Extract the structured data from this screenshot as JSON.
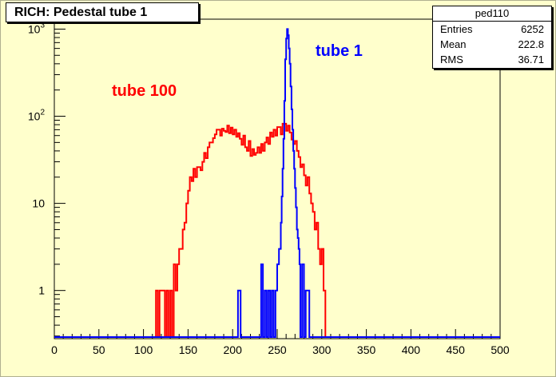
{
  "chart_data": {
    "type": "histogram",
    "title": "RICH: Pedestal tube 1",
    "x_axis": {
      "range": [
        0,
        500
      ],
      "ticks": [
        0,
        50,
        100,
        150,
        200,
        250,
        300,
        350,
        400,
        450,
        500
      ]
    },
    "y_axis": {
      "scale": "log",
      "range": [
        0.28,
        1300
      ],
      "ticks": [
        {
          "value": 1,
          "base": "1",
          "exp": ""
        },
        {
          "value": 10,
          "base": "10",
          "exp": ""
        },
        {
          "value": 100,
          "base": "10",
          "exp": "2"
        },
        {
          "value": 1000,
          "base": "10",
          "exp": "3"
        }
      ]
    },
    "series": [
      {
        "name": "tube 100",
        "color": "#ff0000",
        "bin_width": 2,
        "points": [
          [
            0,
            0
          ],
          [
            114,
            0
          ],
          [
            114,
            1
          ],
          [
            116,
            1
          ],
          [
            116,
            0
          ],
          [
            118,
            0
          ],
          [
            118,
            1
          ],
          [
            124,
            1
          ],
          [
            124,
            0
          ],
          [
            126,
            0
          ],
          [
            126,
            1
          ],
          [
            128,
            1
          ],
          [
            128,
            0
          ],
          [
            130,
            0
          ],
          [
            130,
            1
          ],
          [
            132,
            1
          ],
          [
            132,
            0
          ],
          [
            134,
            0
          ],
          [
            134,
            2
          ],
          [
            136,
            2
          ],
          [
            136,
            1
          ],
          [
            138,
            1
          ],
          [
            138,
            2
          ],
          [
            140,
            2
          ],
          [
            140,
            3
          ],
          [
            144,
            3
          ],
          [
            144,
            5
          ],
          [
            146,
            5
          ],
          [
            146,
            6
          ],
          [
            148,
            6
          ],
          [
            148,
            10
          ],
          [
            150,
            10
          ],
          [
            150,
            14
          ],
          [
            152,
            14
          ],
          [
            152,
            20
          ],
          [
            154,
            20
          ],
          [
            154,
            18
          ],
          [
            156,
            18
          ],
          [
            156,
            25
          ],
          [
            158,
            25
          ],
          [
            158,
            20
          ],
          [
            160,
            20
          ],
          [
            160,
            26
          ],
          [
            164,
            26
          ],
          [
            164,
            24
          ],
          [
            166,
            24
          ],
          [
            166,
            30
          ],
          [
            168,
            30
          ],
          [
            168,
            38
          ],
          [
            170,
            38
          ],
          [
            170,
            33
          ],
          [
            172,
            33
          ],
          [
            172,
            44
          ],
          [
            174,
            44
          ],
          [
            174,
            50
          ],
          [
            178,
            50
          ],
          [
            178,
            56
          ],
          [
            180,
            56
          ],
          [
            180,
            62
          ],
          [
            182,
            62
          ],
          [
            182,
            70
          ],
          [
            186,
            70
          ],
          [
            186,
            60
          ],
          [
            188,
            60
          ],
          [
            188,
            72
          ],
          [
            190,
            72
          ],
          [
            190,
            68
          ],
          [
            192,
            68
          ],
          [
            192,
            66
          ],
          [
            194,
            66
          ],
          [
            194,
            78
          ],
          [
            196,
            78
          ],
          [
            196,
            64
          ],
          [
            198,
            64
          ],
          [
            198,
            74
          ],
          [
            200,
            74
          ],
          [
            200,
            62
          ],
          [
            202,
            62
          ],
          [
            202,
            70
          ],
          [
            204,
            70
          ],
          [
            204,
            58
          ],
          [
            206,
            58
          ],
          [
            206,
            64
          ],
          [
            208,
            64
          ],
          [
            208,
            55
          ],
          [
            210,
            55
          ],
          [
            210,
            47
          ],
          [
            212,
            47
          ],
          [
            212,
            60
          ],
          [
            214,
            60
          ],
          [
            214,
            44
          ],
          [
            216,
            44
          ],
          [
            216,
            40
          ],
          [
            218,
            40
          ],
          [
            218,
            52
          ],
          [
            220,
            52
          ],
          [
            220,
            35
          ],
          [
            222,
            35
          ],
          [
            222,
            42
          ],
          [
            224,
            42
          ],
          [
            224,
            36
          ],
          [
            226,
            36
          ],
          [
            226,
            38
          ],
          [
            228,
            38
          ],
          [
            228,
            44
          ],
          [
            230,
            44
          ],
          [
            230,
            38
          ],
          [
            232,
            38
          ],
          [
            232,
            48
          ],
          [
            234,
            48
          ],
          [
            234,
            40
          ],
          [
            236,
            40
          ],
          [
            236,
            50
          ],
          [
            238,
            50
          ],
          [
            238,
            57
          ],
          [
            240,
            57
          ],
          [
            240,
            48
          ],
          [
            242,
            48
          ],
          [
            242,
            65
          ],
          [
            244,
            65
          ],
          [
            244,
            58
          ],
          [
            246,
            58
          ],
          [
            246,
            70
          ],
          [
            248,
            70
          ],
          [
            248,
            60
          ],
          [
            250,
            60
          ],
          [
            250,
            75
          ],
          [
            254,
            75
          ],
          [
            254,
            62
          ],
          [
            256,
            62
          ],
          [
            256,
            82
          ],
          [
            260,
            82
          ],
          [
            260,
            68
          ],
          [
            262,
            68
          ],
          [
            262,
            78
          ],
          [
            264,
            78
          ],
          [
            264,
            65
          ],
          [
            266,
            65
          ],
          [
            266,
            54
          ],
          [
            268,
            54
          ],
          [
            268,
            48
          ],
          [
            270,
            48
          ],
          [
            270,
            52
          ],
          [
            272,
            52
          ],
          [
            272,
            40
          ],
          [
            274,
            40
          ],
          [
            274,
            34
          ],
          [
            276,
            34
          ],
          [
            276,
            26
          ],
          [
            278,
            26
          ],
          [
            278,
            28
          ],
          [
            280,
            28
          ],
          [
            280,
            21
          ],
          [
            282,
            21
          ],
          [
            282,
            16
          ],
          [
            284,
            16
          ],
          [
            284,
            20
          ],
          [
            286,
            20
          ],
          [
            286,
            13
          ],
          [
            288,
            13
          ],
          [
            288,
            10
          ],
          [
            290,
            10
          ],
          [
            290,
            8
          ],
          [
            292,
            8
          ],
          [
            292,
            5
          ],
          [
            294,
            5
          ],
          [
            294,
            6
          ],
          [
            296,
            6
          ],
          [
            296,
            3
          ],
          [
            298,
            3
          ],
          [
            298,
            2
          ],
          [
            300,
            2
          ],
          [
            300,
            3
          ],
          [
            302,
            3
          ],
          [
            302,
            1
          ],
          [
            304,
            1
          ],
          [
            304,
            0
          ],
          [
            500,
            0
          ]
        ]
      },
      {
        "name": "tube 1",
        "color": "#0000ff",
        "bin_width": 1,
        "points": [
          [
            0,
            0
          ],
          [
            206,
            0
          ],
          [
            206,
            1
          ],
          [
            209,
            1
          ],
          [
            209,
            0
          ],
          [
            232,
            0
          ],
          [
            232,
            2
          ],
          [
            234,
            2
          ],
          [
            234,
            0
          ],
          [
            236,
            0
          ],
          [
            236,
            1
          ],
          [
            238,
            1
          ],
          [
            238,
            0
          ],
          [
            240,
            0
          ],
          [
            240,
            1
          ],
          [
            242,
            1
          ],
          [
            242,
            0
          ],
          [
            244,
            0
          ],
          [
            244,
            1
          ],
          [
            246,
            1
          ],
          [
            246,
            0
          ],
          [
            248,
            0
          ],
          [
            248,
            1
          ],
          [
            250,
            1
          ],
          [
            250,
            2
          ],
          [
            252,
            2
          ],
          [
            252,
            3
          ],
          [
            254,
            3
          ],
          [
            254,
            6
          ],
          [
            255,
            6
          ],
          [
            255,
            12
          ],
          [
            256,
            12
          ],
          [
            256,
            25
          ],
          [
            257,
            25
          ],
          [
            257,
            55
          ],
          [
            258,
            55
          ],
          [
            258,
            150
          ],
          [
            259,
            150
          ],
          [
            259,
            450
          ],
          [
            260,
            450
          ],
          [
            260,
            780
          ],
          [
            261,
            780
          ],
          [
            261,
            1000
          ],
          [
            262,
            1000
          ],
          [
            262,
            850
          ],
          [
            263,
            850
          ],
          [
            263,
            600
          ],
          [
            264,
            600
          ],
          [
            264,
            400
          ],
          [
            265,
            400
          ],
          [
            265,
            220
          ],
          [
            266,
            220
          ],
          [
            266,
            120
          ],
          [
            267,
            120
          ],
          [
            267,
            70
          ],
          [
            268,
            70
          ],
          [
            268,
            40
          ],
          [
            269,
            40
          ],
          [
            269,
            25
          ],
          [
            270,
            25
          ],
          [
            270,
            15
          ],
          [
            271,
            15
          ],
          [
            271,
            9
          ],
          [
            272,
            9
          ],
          [
            272,
            5
          ],
          [
            273,
            5
          ],
          [
            273,
            4
          ],
          [
            274,
            4
          ],
          [
            274,
            3
          ],
          [
            275,
            3
          ],
          [
            275,
            2
          ],
          [
            276,
            2
          ],
          [
            276,
            0
          ],
          [
            278,
            0
          ],
          [
            278,
            2
          ],
          [
            280,
            2
          ],
          [
            280,
            0
          ],
          [
            282,
            0
          ],
          [
            282,
            1
          ],
          [
            286,
            1
          ],
          [
            286,
            0
          ],
          [
            500,
            0
          ]
        ]
      }
    ],
    "annotations": [
      {
        "text": "tube 100",
        "color": "#ff0000"
      },
      {
        "text": "tube 1",
        "color": "#0000ff"
      }
    ]
  },
  "stats": {
    "name": "ped110",
    "rows": [
      {
        "label": "Entries",
        "value": "6252"
      },
      {
        "label": "Mean",
        "value": "222.8"
      },
      {
        "label": "RMS",
        "value": "36.71"
      }
    ]
  }
}
